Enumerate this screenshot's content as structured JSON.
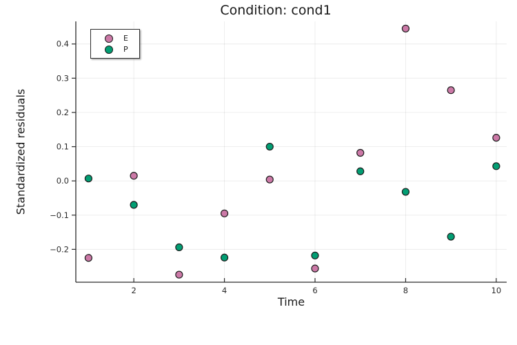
{
  "title": "Condition: cond1",
  "chart_data": {
    "type": "scatter",
    "title": "Condition: cond1",
    "xlabel": "Time",
    "ylabel": "Standardized residuals",
    "x": [
      1,
      2,
      3,
      4,
      5,
      6,
      7,
      8,
      9,
      10
    ],
    "series": [
      {
        "name": "E",
        "color": "#CC79A7",
        "values": [
          -0.225,
          0.015,
          -0.274,
          -0.095,
          0.004,
          -0.256,
          0.082,
          0.445,
          0.265,
          0.126
        ]
      },
      {
        "name": "P",
        "color": "#029E73",
        "values": [
          0.007,
          -0.07,
          -0.194,
          -0.224,
          0.1,
          -0.218,
          0.028,
          -0.032,
          -0.163,
          0.043
        ]
      }
    ],
    "xlim": [
      0.72,
      10.23
    ],
    "ylim": [
      -0.296,
      0.466
    ],
    "x_ticks": [
      2,
      4,
      6,
      8,
      10
    ],
    "y_ticks": [
      -0.2,
      -0.1,
      0.0,
      0.1,
      0.2,
      0.3,
      0.4
    ],
    "grid": true,
    "legend_position": "top-left",
    "marker": {
      "size": 10,
      "stroke_color": "#1c1c1c"
    },
    "style": {
      "grid_color": "rgba(0,0,0,0.08)",
      "spine_color": "#2a2a2a",
      "tick_label_color": "#2b2b2b"
    }
  }
}
